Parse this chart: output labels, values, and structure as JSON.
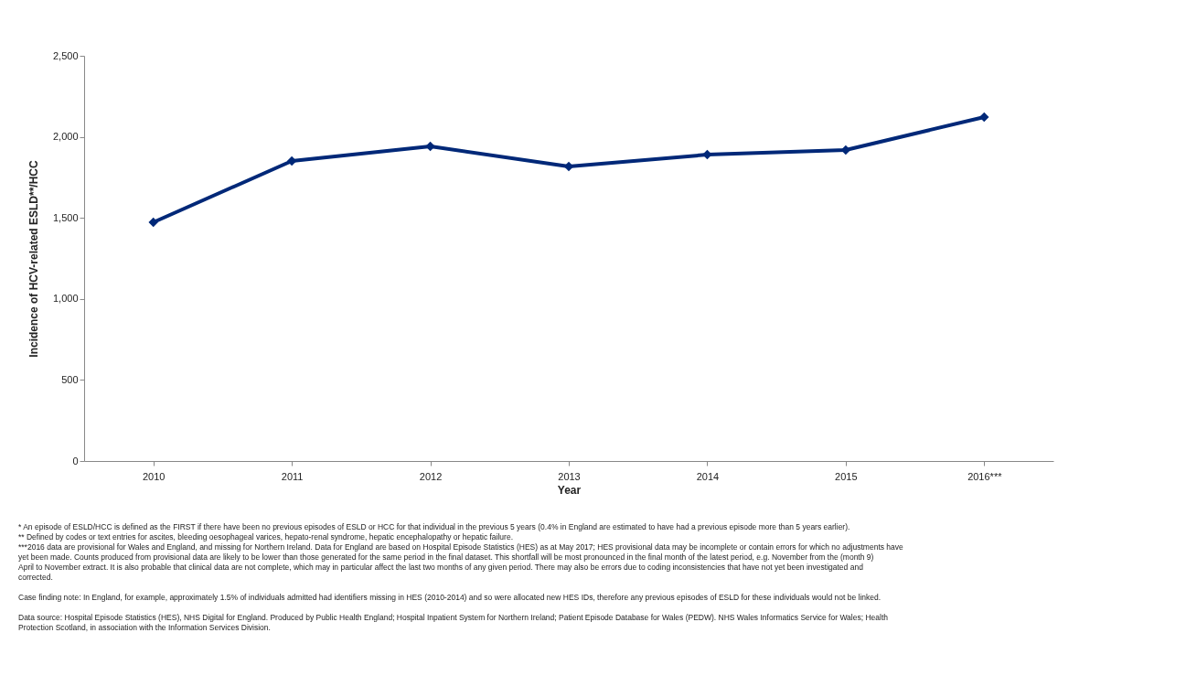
{
  "chart_data": {
    "type": "line",
    "xlabel": "Year",
    "ylabel": "Incidence of HCV-related ESLD**/HCC",
    "categories": [
      "2010",
      "2011",
      "2012",
      "2013",
      "2014",
      "2015",
      "2016***"
    ],
    "series": [
      {
        "color": "#002878",
        "values": [
          1473,
          1851,
          1941,
          1817,
          1890,
          1919,
          2122
        ]
      }
    ],
    "ylim": [
      0,
      2500
    ],
    "yticks": [
      0,
      {
        "value": 500,
        "label": "500"
      },
      {
        "value": 1000,
        "label": "1,000"
      },
      {
        "value": 1500,
        "label": "1,500"
      },
      {
        "value": 2000,
        "label": "2,000"
      },
      {
        "value": 2500,
        "label": "2,500"
      }
    ],
    "grid": false,
    "marker": "diamond",
    "line_style": "solid",
    "annotations": [
      "* An episode of ESLD/HCC is defined as the FIRST if there have been no previous episodes of ESLD or HCC for that individual in the previous 5 years (0.4% in England are estimated to have had a previous episode more than 5 years earlier).",
      "** Defined by codes or text entries for ascites, bleeding oesophageal varices, hepato-renal syndrome, hepatic encephalopathy or hepatic failure.",
      "***2016 data are provisional for Wales and England, and missing for Northern Ireland. Data for England are based on Hospital Episode Statistics (HES) as at May 2017; HES provisional data may be incomplete or contain errors for which no adjustments have yet been made. Counts produced from provisional data are likely to be lower than those generated for the same period in the final dataset. This shortfall will be most pronounced in the final month of the latest period, e.g. November from the (month 9) April to November extract. It is also probable that clinical data are not complete, which may in particular affect the last two months of any given period. There may also be errors due to coding inconsistencies that have not yet been investigated and corrected.",
      "Case finding note: In England, for example, approximately 1.5% of individuals admitted had identifiers missing in HES (2010-2014) and so were allocated new HES IDs, therefore any previous episodes of ESLD for these individuals would not be linked.",
      "Data source: Hospital Episode Statistics (HES), NHS Digital for England. Produced by Public Health England; Hospital Inpatient System for Northern Ireland; Patient Episode Database for Wales (PEDW). NHS Wales Informatics Service for Wales; Health Protection Scotland, in association with the Information Services Division."
    ]
  }
}
